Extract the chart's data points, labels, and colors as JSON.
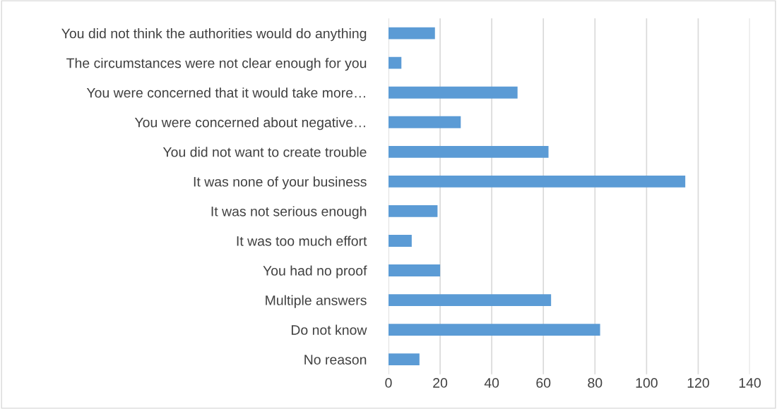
{
  "chart_data": {
    "type": "bar",
    "orientation": "horizontal",
    "categories": [
      "You did not think the authorities would do anything",
      "The circumstances were not clear enough for you",
      "You were concerned that it would take more…",
      "You were concerned about negative…",
      "You did not want to create trouble",
      "It was none of your business",
      "It was not serious enough",
      "It was too much effort",
      "You had no proof",
      "Multiple answers",
      "Do not know",
      "No reason"
    ],
    "values": [
      18,
      5,
      50,
      28,
      62,
      115,
      19,
      9,
      20,
      63,
      82,
      12
    ],
    "color": "#5b9bd5",
    "xlim": [
      0,
      140
    ],
    "xticks": [
      0,
      20,
      40,
      60,
      80,
      100,
      120,
      140
    ],
    "grid": "x"
  }
}
